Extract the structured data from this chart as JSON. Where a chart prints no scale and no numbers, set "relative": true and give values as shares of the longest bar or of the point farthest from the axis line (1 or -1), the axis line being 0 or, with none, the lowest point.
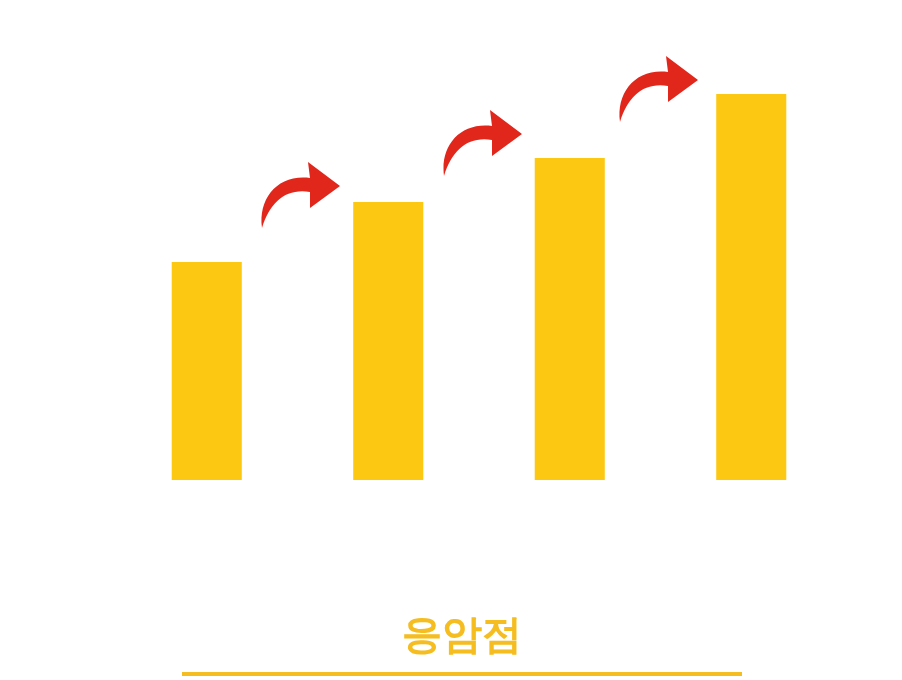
{
  "chart_data": {
    "type": "bar",
    "title": "응암점",
    "categories": [
      null,
      null,
      null,
      null
    ],
    "values": [
      0.565,
      0.72,
      0.834,
      1
    ],
    "color": "#fcc812",
    "relative": true
  }
}
